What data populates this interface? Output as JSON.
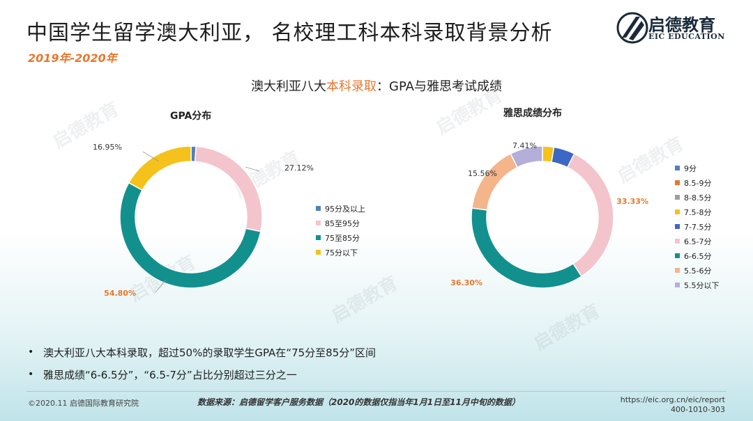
{
  "header": {
    "title": "中国学生留学澳大利亚， 名校理工科本科录取背景分析",
    "date": "2019年-2020年"
  },
  "logo": {
    "name_cn": "启德教育",
    "name_en": "EIC EDUCATION"
  },
  "subtitle": {
    "pre": "澳大利亚八大",
    "highlight": "本科录取",
    "post": "：GPA与雅思考试成绩"
  },
  "chart_data": [
    {
      "type": "pie",
      "donut": true,
      "title": "GPA分布",
      "categories": [
        "95分及以上",
        "85至95分",
        "75至85分",
        "75分以下"
      ],
      "values": [
        1.13,
        27.12,
        54.8,
        16.95
      ],
      "labels": [
        "",
        "27.12%",
        "54.80%",
        "16.95%"
      ],
      "colors": [
        "#4f81bd",
        "#f3c4cc",
        "#12908e",
        "#f5c21b"
      ],
      "legend": "right"
    },
    {
      "type": "pie",
      "donut": true,
      "title": "雅思成绩分布",
      "categories": [
        "9分",
        "8.5-9分",
        "8-8.5分",
        "7.5-8分",
        "7-7.5分",
        "6.5-7分",
        "6-6.5分",
        "5.5-6分",
        "5.5分以下"
      ],
      "values": [
        0,
        0,
        0,
        2.6,
        4.8,
        33.33,
        36.3,
        15.56,
        7.41
      ],
      "labels": [
        "",
        "",
        "",
        "",
        "",
        "33.33%",
        "36.30%",
        "15.56%",
        "7.41%"
      ],
      "colors": [
        "#4f81bd",
        "#e8762c",
        "#9e9e9e",
        "#f5c21b",
        "#3c67c4",
        "#f3c4cc",
        "#12908e",
        "#f4b58a",
        "#b4afd8"
      ],
      "legend": "right"
    }
  ],
  "bullets": [
    "澳大利亚八大本科录取，超过50%的录取学生GPA在“75分至85分”区间",
    "雅思成绩“6-6.5分”，“6.5-7分”占比分别超过三分之一"
  ],
  "footer": {
    "copyright": "©2020.11 启德国际教育研究院",
    "source": "数据来源：启德留学客户服务数据（2020的数据仅指当年1月1日至11月中旬的数据）",
    "url": "https://eic.org.cn/eic/report",
    "phone": "400-1010-303"
  },
  "watermark": "启德教育"
}
